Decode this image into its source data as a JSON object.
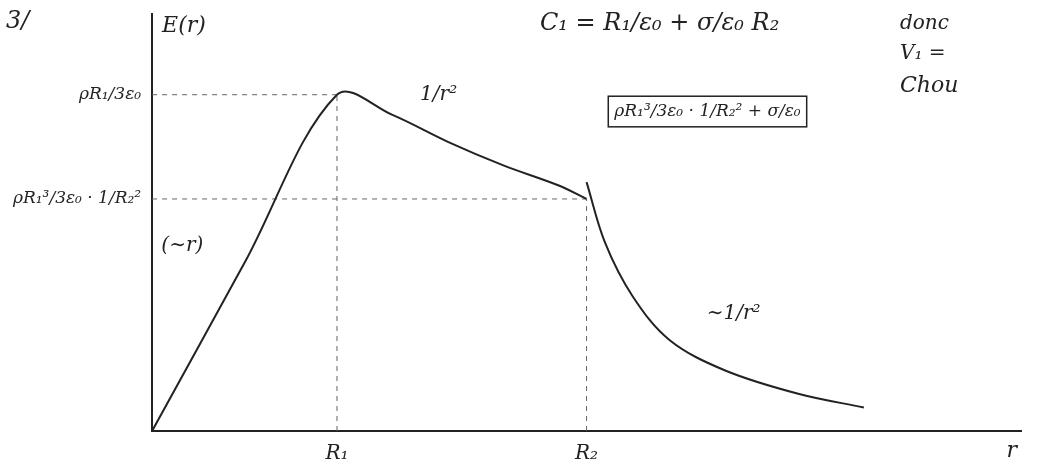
{
  "title": "3/",
  "notes": [
    "C₁ = R₁/ε₀ + σ/ε₀ R₂",
    "donc",
    "V₁ =",
    "Chou"
  ],
  "chart_data": {
    "type": "line",
    "x_label": "r",
    "y_label": "E(r)",
    "x": [
      0,
      0.5,
      1,
      1.3,
      1.6,
      1.9,
      2.2,
      2.35,
      2.35,
      2.35,
      2.45,
      2.6,
      2.8,
      3.1,
      3.5,
      3.85
    ],
    "values": [
      0,
      0.5,
      1,
      0.94,
      0.86,
      0.79,
      0.73,
      0.69,
      null,
      0.74,
      0.56,
      0.4,
      0.27,
      0.18,
      0.11,
      0.07
    ],
    "color": "#222222",
    "marker": "none",
    "line_style": "solid",
    "xlim": [
      0,
      4.7
    ],
    "ylim": [
      0,
      1.24
    ],
    "xticks": [
      {
        "value": 1,
        "label": "R₁"
      },
      {
        "value": 2.35,
        "label": "R₂"
      }
    ],
    "yticks": [
      {
        "value": 1,
        "label": "ρR₁/3ε₀"
      },
      {
        "value": 0.69,
        "label": "ρR₁³/3ε₀ · 1/R₂²"
      }
    ],
    "grid": false,
    "annotations": [
      "(∼r)",
      "1/r²",
      "∼1/r²",
      "ρR₁³/3ε₀ · 1/R₂² + σ/ε₀"
    ]
  }
}
